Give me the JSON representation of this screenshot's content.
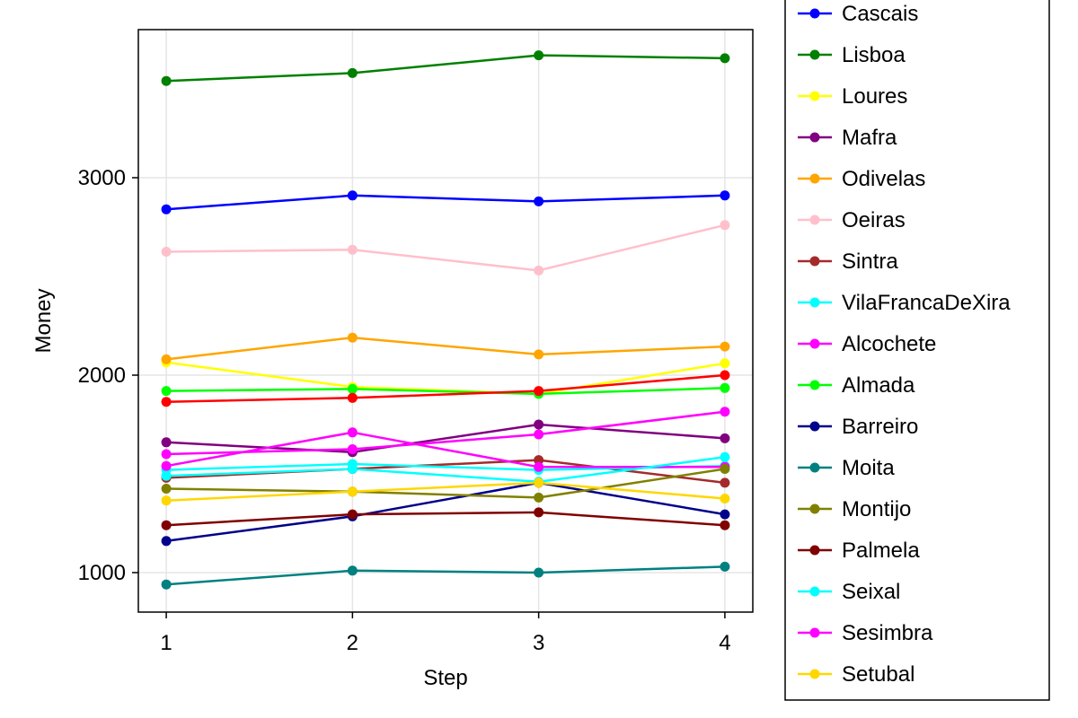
{
  "chart_data": {
    "type": "line",
    "title": "",
    "xlabel": "Step",
    "ylabel": "Money",
    "x": [
      1,
      2,
      3,
      4
    ],
    "xlim": [
      0.85,
      4.15
    ],
    "ylim": [
      800,
      3750
    ],
    "xticks": [
      1,
      2,
      3,
      4
    ],
    "yticks": [
      1000,
      2000,
      3000
    ],
    "grid": true,
    "legend_position": "right",
    "series": [
      {
        "name": "Cascais",
        "color": "#0000ff",
        "values": [
          2840,
          2910,
          2880,
          2910
        ]
      },
      {
        "name": "Lisboa",
        "color": "#008000",
        "values": [
          3490,
          3530,
          3620,
          3605
        ]
      },
      {
        "name": "Loures",
        "color": "#ffff00",
        "values": [
          2065,
          1940,
          1905,
          2060
        ]
      },
      {
        "name": "Mafra",
        "color": "#800080",
        "values": [
          1660,
          1610,
          1750,
          1680
        ]
      },
      {
        "name": "Odivelas",
        "color": "#ffa500",
        "values": [
          2080,
          2190,
          2105,
          2145
        ]
      },
      {
        "name": "Oeiras",
        "color": "#ffc0cb",
        "values": [
          2625,
          2635,
          2530,
          2760
        ]
      },
      {
        "name": "Sintra",
        "color": "#a52a2a",
        "values": [
          1480,
          1525,
          1570,
          1455
        ]
      },
      {
        "name": "VilaFrancaDeXira",
        "color": "#00ffff",
        "values": [
          1520,
          1550,
          1520,
          1540
        ]
      },
      {
        "name": "Alcochete",
        "color": "#ff00ff",
        "values": [
          1540,
          1710,
          1535,
          1535
        ]
      },
      {
        "name": "Almada",
        "color": "#00ff00",
        "values": [
          1920,
          1930,
          1905,
          1935
        ]
      },
      {
        "name": "Barreiro",
        "color": "#00008b",
        "values": [
          1160,
          1285,
          1455,
          1295
        ]
      },
      {
        "name": "Moita",
        "color": "#008080",
        "values": [
          940,
          1010,
          1000,
          1030
        ]
      },
      {
        "name": "Montijo",
        "color": "#808000",
        "values": [
          1425,
          1410,
          1380,
          1525
        ]
      },
      {
        "name": "Palmela",
        "color": "#800000",
        "values": [
          1240,
          1295,
          1305,
          1240
        ]
      },
      {
        "name": "Seixal",
        "color": "#00ffff",
        "values": [
          1490,
          1525,
          1460,
          1585
        ]
      },
      {
        "name": "Sesimbra",
        "color": "#ff00ff",
        "values": [
          1600,
          1625,
          1700,
          1815
        ]
      },
      {
        "name": "Setubal",
        "color": "#ffd700",
        "values": [
          1365,
          1410,
          1455,
          1375
        ]
      },
      {
        "color": "#ff0000",
        "values": [
          1865,
          1885,
          1920,
          2000
        ]
      }
    ]
  }
}
